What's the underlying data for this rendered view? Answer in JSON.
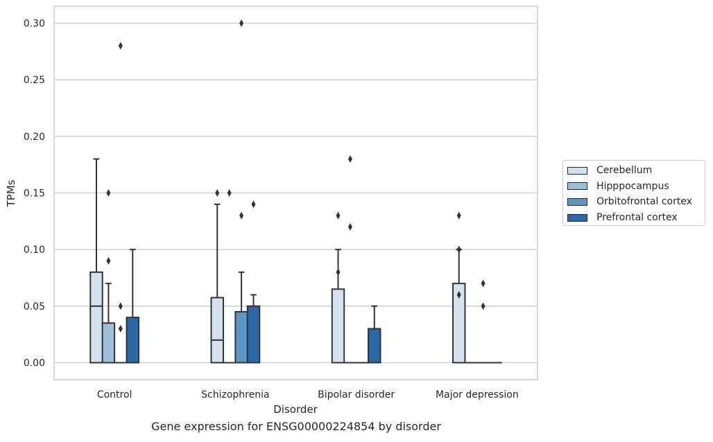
{
  "chart_data": {
    "type": "box",
    "title": "",
    "xlabel": "Disorder",
    "ylabel": "TPMs",
    "caption": "Gene expression for ENSG00000224854 by disorder",
    "ylim": [
      -0.015,
      0.315
    ],
    "yticks": [
      "0.00",
      "0.05",
      "0.10",
      "0.15",
      "0.20",
      "0.25",
      "0.30"
    ],
    "grid": "horizontal",
    "legend_position": "right",
    "categories": [
      "Control",
      "Schizophrenia",
      "Bipolar disorder",
      "Major depression"
    ],
    "series": [
      {
        "name": "Cerebellum",
        "color": "#d4e2f0",
        "boxes": [
          {
            "whislo": 0.0,
            "q1": 0.0,
            "med": 0.05,
            "q3": 0.08,
            "whishi": 0.18,
            "fliers": []
          },
          {
            "whislo": 0.0,
            "q1": 0.0,
            "med": 0.02,
            "q3": 0.0575,
            "whishi": 0.14,
            "fliers": [
              0.15
            ]
          },
          {
            "whislo": 0.0,
            "q1": 0.0,
            "med": 0.0,
            "q3": 0.065,
            "whishi": 0.1,
            "fliers": [
              0.13,
              0.08
            ]
          },
          {
            "whislo": 0.0,
            "q1": 0.0,
            "med": 0.0,
            "q3": 0.07,
            "whishi": 0.1,
            "fliers": [
              0.13,
              0.1,
              0.06
            ]
          }
        ]
      },
      {
        "name": "Hipppocampus",
        "color": "#9ac0dc",
        "boxes": [
          {
            "whislo": 0.0,
            "q1": 0.0,
            "med": 0.0,
            "q3": 0.035,
            "whishi": 0.07,
            "fliers": [
              0.15,
              0.09
            ]
          },
          {
            "whislo": 0.0,
            "q1": 0.0,
            "med": 0.0,
            "q3": 0.0,
            "whishi": 0.0,
            "fliers": [
              0.15
            ]
          },
          {
            "whislo": 0.0,
            "q1": 0.0,
            "med": 0.0,
            "q3": 0.0,
            "whishi": 0.0,
            "fliers": [
              0.18,
              0.12
            ]
          },
          {
            "whislo": 0.0,
            "q1": 0.0,
            "med": 0.0,
            "q3": 0.0,
            "whishi": 0.0,
            "fliers": []
          }
        ]
      },
      {
        "name": "Orbitofrontal cortex",
        "color": "#5898c3",
        "boxes": [
          {
            "whislo": 0.0,
            "q1": 0.0,
            "med": 0.0,
            "q3": 0.0,
            "whishi": 0.0,
            "fliers": [
              0.28,
              0.05,
              0.03
            ]
          },
          {
            "whislo": 0.0,
            "q1": 0.0,
            "med": 0.0,
            "q3": 0.045,
            "whishi": 0.08,
            "fliers": [
              0.3,
              0.13
            ]
          },
          {
            "whislo": 0.0,
            "q1": 0.0,
            "med": 0.0,
            "q3": 0.0,
            "whishi": 0.0,
            "fliers": []
          },
          {
            "whislo": 0.0,
            "q1": 0.0,
            "med": 0.0,
            "q3": 0.0,
            "whishi": 0.0,
            "fliers": [
              0.07,
              0.05
            ]
          }
        ]
      },
      {
        "name": "Prefrontal cortex",
        "color": "#2b6aa8",
        "boxes": [
          {
            "whislo": 0.0,
            "q1": 0.0,
            "med": 0.0,
            "q3": 0.04,
            "whishi": 0.1,
            "fliers": []
          },
          {
            "whislo": 0.0,
            "q1": 0.0,
            "med": 0.0,
            "q3": 0.05,
            "whishi": 0.06,
            "fliers": [
              0.14
            ]
          },
          {
            "whislo": 0.0,
            "q1": 0.0,
            "med": 0.0,
            "q3": 0.03,
            "whishi": 0.05,
            "fliers": []
          },
          {
            "whislo": 0.0,
            "q1": 0.0,
            "med": 0.0,
            "q3": 0.0,
            "whishi": 0.0,
            "fliers": []
          }
        ]
      }
    ]
  }
}
